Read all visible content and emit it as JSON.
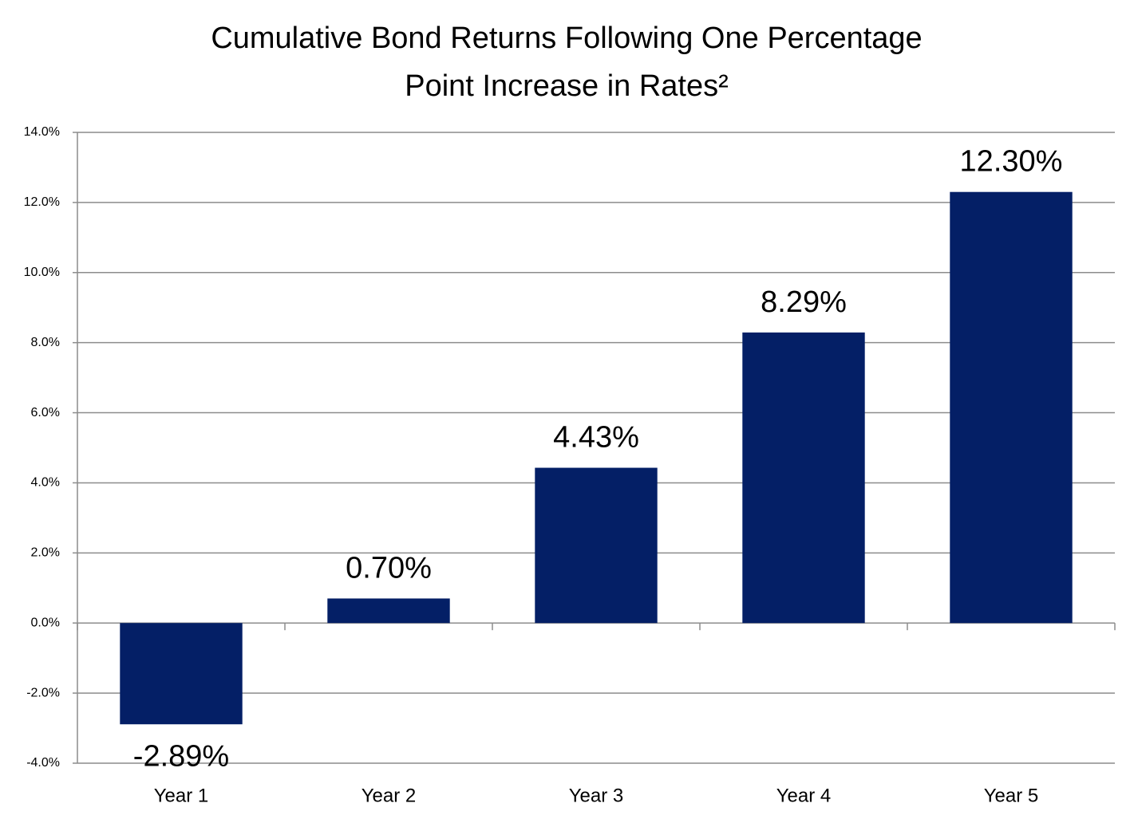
{
  "chart_data": {
    "type": "bar",
    "title": [
      "Cumulative Bond Returns Following One Percentage",
      "Point Increase in Rates²"
    ],
    "categories": [
      "Year 1",
      "Year 2",
      "Year 3",
      "Year 4",
      "Year 5"
    ],
    "values": [
      -2.89,
      0.7,
      4.43,
      8.29,
      12.3
    ],
    "value_labels": [
      "-2.89%",
      "0.70%",
      "4.43%",
      "8.29%",
      "12.30%"
    ],
    "color": "#041f66",
    "ylim": [
      -4,
      14
    ],
    "yticks": [
      {
        "value": -4,
        "label": "-4.0%"
      },
      {
        "value": -2,
        "label": "-2.0%"
      },
      {
        "value": 0,
        "label": "0.0%"
      },
      {
        "value": 2,
        "label": "2.0%"
      },
      {
        "value": 4,
        "label": "4.0%"
      },
      {
        "value": 6,
        "label": "6.0%"
      },
      {
        "value": 8,
        "label": "8.0%"
      },
      {
        "value": 10,
        "label": "10.0%"
      },
      {
        "value": 12,
        "label": "12.0%"
      },
      {
        "value": 14,
        "label": "14.0%"
      }
    ],
    "grid": true
  }
}
